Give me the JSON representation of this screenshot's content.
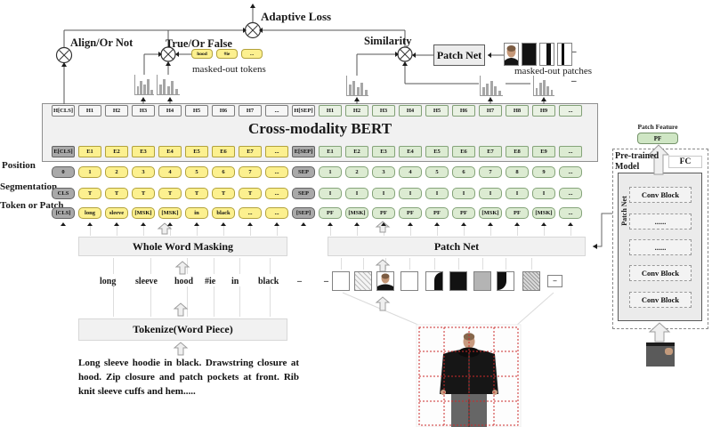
{
  "top": {
    "adaptive_loss_label": "Adaptive Loss",
    "align_label": "Align/Or Not",
    "true_false_label": "True/Or False",
    "similarity_label": "Similarity",
    "patch_net_label": "Patch Net",
    "masked_tokens_label": "masked-out tokens",
    "masked_patches_label": "masked-out patches",
    "masked_tokens": [
      [
        "hood",
        "pill"
      ],
      [
        "#ie",
        "pill"
      ],
      [
        "...",
        "pill"
      ]
    ],
    "dash": "–"
  },
  "bert": {
    "title": "Cross-modality BERT",
    "h_row": [
      [
        "H[CLS]",
        "w"
      ],
      [
        "H1",
        "w"
      ],
      [
        "H2",
        "w"
      ],
      [
        "H3",
        "w"
      ],
      [
        "H4",
        "w"
      ],
      [
        "H5",
        "w"
      ],
      [
        "H6",
        "w"
      ],
      [
        "H7",
        "w"
      ],
      [
        "...",
        "w"
      ],
      [
        "H[SEP]",
        "w"
      ],
      [
        "H1",
        "gl"
      ],
      [
        "H2",
        "gl"
      ],
      [
        "H3",
        "gl"
      ],
      [
        "H4",
        "gl"
      ],
      [
        "H5",
        "gl"
      ],
      [
        "H6",
        "gl"
      ],
      [
        "H7",
        "gl"
      ],
      [
        "H8",
        "gl"
      ],
      [
        "H9",
        "gl"
      ],
      [
        "...",
        "gl"
      ]
    ],
    "e_row": [
      [
        "E[CLS]",
        "k"
      ],
      [
        "E1",
        "y"
      ],
      [
        "E2",
        "y"
      ],
      [
        "E3",
        "y"
      ],
      [
        "E4",
        "y"
      ],
      [
        "E5",
        "y"
      ],
      [
        "E6",
        "y"
      ],
      [
        "E7",
        "y"
      ],
      [
        "...",
        "y"
      ],
      [
        "E[SEP]",
        "k"
      ],
      [
        "E1",
        "g"
      ],
      [
        "E2",
        "g"
      ],
      [
        "E3",
        "g"
      ],
      [
        "E4",
        "g"
      ],
      [
        "E5",
        "g"
      ],
      [
        "E6",
        "g"
      ],
      [
        "E7",
        "g"
      ],
      [
        "E8",
        "g"
      ],
      [
        "E9",
        "g"
      ],
      [
        "...",
        "g"
      ]
    ]
  },
  "rows": {
    "position_label": "Position",
    "segmentation_label": "Segmentation",
    "token_label": "Token or Patch",
    "position": [
      [
        "0",
        "k"
      ],
      [
        "1",
        "y"
      ],
      [
        "2",
        "y"
      ],
      [
        "3",
        "y"
      ],
      [
        "4",
        "y"
      ],
      [
        "5",
        "y"
      ],
      [
        "6",
        "y"
      ],
      [
        "7",
        "y"
      ],
      [
        "...",
        "y"
      ],
      [
        "SEP",
        "k"
      ],
      [
        "1",
        "g"
      ],
      [
        "2",
        "g"
      ],
      [
        "3",
        "g"
      ],
      [
        "4",
        "g"
      ],
      [
        "5",
        "g"
      ],
      [
        "6",
        "g"
      ],
      [
        "7",
        "g"
      ],
      [
        "8",
        "g"
      ],
      [
        "9",
        "g"
      ],
      [
        "...",
        "g"
      ]
    ],
    "segmentation": [
      [
        "CLS",
        "k"
      ],
      [
        "T",
        "y"
      ],
      [
        "T",
        "y"
      ],
      [
        "T",
        "y"
      ],
      [
        "T",
        "y"
      ],
      [
        "T",
        "y"
      ],
      [
        "T",
        "y"
      ],
      [
        "T",
        "y"
      ],
      [
        "...",
        "y"
      ],
      [
        "SEP",
        "k"
      ],
      [
        "I",
        "g"
      ],
      [
        "I",
        "g"
      ],
      [
        "I",
        "g"
      ],
      [
        "I",
        "g"
      ],
      [
        "I",
        "g"
      ],
      [
        "I",
        "g"
      ],
      [
        "I",
        "g"
      ],
      [
        "I",
        "g"
      ],
      [
        "I",
        "g"
      ],
      [
        "...",
        "g"
      ]
    ],
    "token": [
      [
        "[CLS]",
        "k"
      ],
      [
        "long",
        "y"
      ],
      [
        "sleeve",
        "y"
      ],
      [
        "[MSK]",
        "y"
      ],
      [
        "[MSK]",
        "y"
      ],
      [
        "in",
        "y"
      ],
      [
        "black",
        "y"
      ],
      [
        "...",
        "y"
      ],
      [
        "...",
        "y"
      ],
      [
        "[SEP]",
        "k"
      ],
      [
        "PF",
        "g"
      ],
      [
        "[MSK]",
        "g"
      ],
      [
        "PF",
        "g"
      ],
      [
        "PF",
        "g"
      ],
      [
        "PF",
        "g"
      ],
      [
        "PF",
        "g"
      ],
      [
        "[MSK]",
        "g"
      ],
      [
        "PF",
        "g"
      ],
      [
        "[MSK]",
        "g"
      ],
      [
        "...",
        "g"
      ]
    ]
  },
  "modules": {
    "whole_word_masking": "Whole Word Masking",
    "patch_net": "Patch Net",
    "tokenize": "Tokenize(Word Piece)"
  },
  "words": [
    "long",
    "sleeve",
    "hood",
    "#ie",
    "in",
    "black",
    "–",
    "–"
  ],
  "caption": "Long sleeve hoodie in black. Drawstring closure at hood. Zip closure and patch pockets at front. Rib knit sleeve cuffs and hem.....",
  "pretrained": {
    "patch_feature_label": "Patch Feature",
    "pf_label": "PF",
    "model_label": "Pre-trained Model",
    "fc_label": "FC",
    "patch_net_label": "Patch Net",
    "blocks": [
      "Conv Block",
      "......",
      "......",
      "Conv Block",
      "Conv Block"
    ]
  }
}
